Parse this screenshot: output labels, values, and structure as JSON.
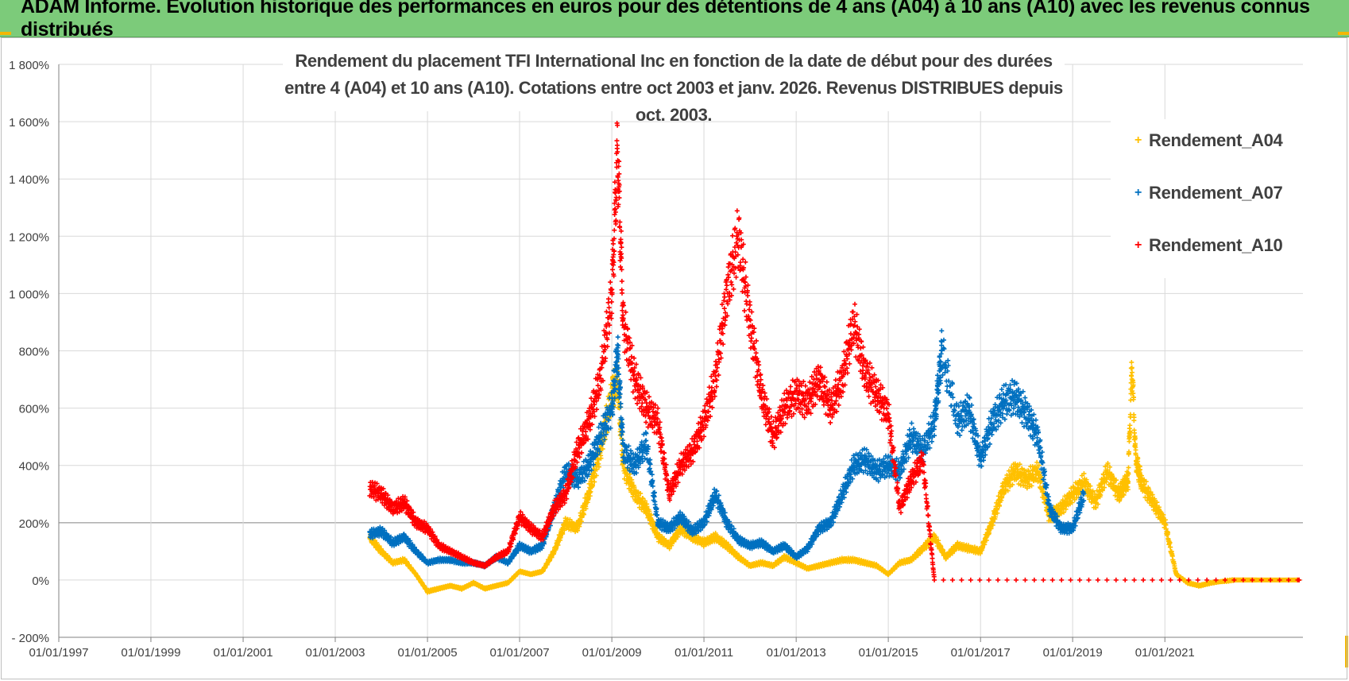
{
  "banner": {
    "title": "ADAM Informe. Evolution historique des performances en euros pour des détentions de 4 ans (A04) à 10 ans (A10) avec les revenus connus distribués"
  },
  "colors": {
    "banner": "#7ccb7a",
    "corner_accent": "#f2b705",
    "A04": "#ffc000",
    "A07": "#0070c0",
    "A10": "#ff0000",
    "gridline": "#d9d9d9",
    "zero_200_line": "#a6a6a6"
  },
  "chart_data": {
    "type": "scatter",
    "marker": "plus",
    "title_lines": [
      "Rendement du placement TFI International Inc en fonction de la date de début pour des durées",
      "entre 4 (A04) et 10 ans (A10). Cotations entre oct 2003 et janv. 2026. Revenus DISTRIBUES depuis oct. 2003."
    ],
    "xlim": [
      "1997-01-01",
      "2023-12-31"
    ],
    "x_ticks": [
      "01/01/1997",
      "01/01/1999",
      "01/01/2001",
      "01/01/2003",
      "01/01/2005",
      "01/01/2007",
      "01/01/2009",
      "01/01/2011",
      "01/01/2013",
      "01/01/2015",
      "01/01/2017",
      "01/01/2019",
      "01/01/2021"
    ],
    "ylim": [
      -200,
      1800
    ],
    "y_ticks": [
      "1 800%",
      "1 600%",
      "1 400%",
      "1 200%",
      "1 000%",
      "800%",
      "600%",
      "400%",
      "200%",
      "0%",
      "- 200%"
    ],
    "y_tick_values": [
      1800,
      1600,
      1400,
      1200,
      1000,
      800,
      600,
      400,
      200,
      0,
      -200
    ],
    "grid": true,
    "legend_position": "top-right",
    "series": [
      {
        "name": "Rendement_A04",
        "color": "#ffc000",
        "points": [
          [
            "2003-10-01",
            150
          ],
          [
            "2004-01-01",
            100
          ],
          [
            "2004-04-01",
            60
          ],
          [
            "2004-07-01",
            70
          ],
          [
            "2004-10-01",
            20
          ],
          [
            "2005-01-01",
            -40
          ],
          [
            "2005-04-01",
            -30
          ],
          [
            "2005-07-01",
            -20
          ],
          [
            "2005-10-01",
            -30
          ],
          [
            "2006-01-01",
            -10
          ],
          [
            "2006-04-01",
            -30
          ],
          [
            "2006-07-01",
            -20
          ],
          [
            "2006-10-01",
            -10
          ],
          [
            "2007-01-01",
            30
          ],
          [
            "2007-04-01",
            20
          ],
          [
            "2007-07-01",
            30
          ],
          [
            "2007-10-01",
            100
          ],
          [
            "2008-01-01",
            200
          ],
          [
            "2008-04-01",
            180
          ],
          [
            "2008-07-01",
            300
          ],
          [
            "2008-10-01",
            450
          ],
          [
            "2009-01-01",
            650
          ],
          [
            "2009-02-15",
            700
          ],
          [
            "2009-04-01",
            400
          ],
          [
            "2009-07-01",
            300
          ],
          [
            "2009-10-01",
            250
          ],
          [
            "2010-01-01",
            150
          ],
          [
            "2010-04-01",
            120
          ],
          [
            "2010-07-01",
            180
          ],
          [
            "2010-10-01",
            150
          ],
          [
            "2011-01-01",
            130
          ],
          [
            "2011-04-01",
            150
          ],
          [
            "2011-07-01",
            120
          ],
          [
            "2011-10-01",
            80
          ],
          [
            "2012-01-01",
            50
          ],
          [
            "2012-04-01",
            60
          ],
          [
            "2012-07-01",
            50
          ],
          [
            "2012-10-01",
            80
          ],
          [
            "2013-01-01",
            60
          ],
          [
            "2013-04-01",
            40
          ],
          [
            "2013-07-01",
            50
          ],
          [
            "2013-10-01",
            60
          ],
          [
            "2014-01-01",
            70
          ],
          [
            "2014-04-01",
            70
          ],
          [
            "2014-07-01",
            60
          ],
          [
            "2014-10-01",
            50
          ],
          [
            "2015-01-01",
            20
          ],
          [
            "2015-04-01",
            60
          ],
          [
            "2015-07-01",
            70
          ],
          [
            "2015-10-01",
            110
          ],
          [
            "2016-01-01",
            150
          ],
          [
            "2016-04-01",
            80
          ],
          [
            "2016-07-01",
            120
          ],
          [
            "2016-10-01",
            110
          ],
          [
            "2017-01-01",
            100
          ],
          [
            "2017-04-01",
            200
          ],
          [
            "2017-07-01",
            320
          ],
          [
            "2017-10-01",
            380
          ],
          [
            "2018-01-01",
            350
          ],
          [
            "2018-04-01",
            380
          ],
          [
            "2018-07-01",
            220
          ],
          [
            "2018-10-01",
            250
          ],
          [
            "2019-01-01",
            300
          ],
          [
            "2019-04-01",
            340
          ],
          [
            "2019-07-01",
            270
          ],
          [
            "2019-10-01",
            380
          ],
          [
            "2020-01-01",
            300
          ],
          [
            "2020-03-15",
            350
          ],
          [
            "2020-04-15",
            750
          ],
          [
            "2020-05-15",
            420
          ],
          [
            "2020-07-01",
            340
          ],
          [
            "2020-10-01",
            270
          ],
          [
            "2021-01-01",
            200
          ],
          [
            "2021-04-01",
            20
          ],
          [
            "2021-07-01",
            -10
          ],
          [
            "2021-10-01",
            -20
          ],
          [
            "2022-01-01",
            -10
          ],
          [
            "2022-07-01",
            0
          ],
          [
            "2023-01-01",
            0
          ],
          [
            "2023-12-01",
            0
          ]
        ]
      },
      {
        "name": "Rendement_A07",
        "color": "#0070c0",
        "points": [
          [
            "2003-10-01",
            160
          ],
          [
            "2004-01-01",
            170
          ],
          [
            "2004-04-01",
            130
          ],
          [
            "2004-07-01",
            150
          ],
          [
            "2004-10-01",
            100
          ],
          [
            "2005-01-01",
            60
          ],
          [
            "2005-04-01",
            70
          ],
          [
            "2005-07-01",
            70
          ],
          [
            "2005-10-01",
            60
          ],
          [
            "2006-01-01",
            60
          ],
          [
            "2006-04-01",
            50
          ],
          [
            "2006-07-01",
            80
          ],
          [
            "2006-10-01",
            60
          ],
          [
            "2007-01-01",
            120
          ],
          [
            "2007-04-01",
            100
          ],
          [
            "2007-07-01",
            120
          ],
          [
            "2007-10-01",
            250
          ],
          [
            "2008-01-01",
            380
          ],
          [
            "2008-04-01",
            350
          ],
          [
            "2008-07-01",
            400
          ],
          [
            "2008-10-01",
            500
          ],
          [
            "2009-01-01",
            600
          ],
          [
            "2009-02-15",
            800
          ],
          [
            "2009-04-01",
            450
          ],
          [
            "2009-07-01",
            400
          ],
          [
            "2009-10-01",
            480
          ],
          [
            "2010-01-01",
            200
          ],
          [
            "2010-04-01",
            180
          ],
          [
            "2010-07-01",
            220
          ],
          [
            "2010-10-01",
            170
          ],
          [
            "2011-01-01",
            200
          ],
          [
            "2011-04-01",
            300
          ],
          [
            "2011-07-01",
            200
          ],
          [
            "2011-10-01",
            140
          ],
          [
            "2012-01-01",
            120
          ],
          [
            "2012-04-01",
            130
          ],
          [
            "2012-07-01",
            100
          ],
          [
            "2012-10-01",
            120
          ],
          [
            "2013-01-01",
            80
          ],
          [
            "2013-04-01",
            110
          ],
          [
            "2013-07-01",
            180
          ],
          [
            "2013-10-01",
            200
          ],
          [
            "2014-01-01",
            300
          ],
          [
            "2014-04-01",
            400
          ],
          [
            "2014-07-01",
            420
          ],
          [
            "2014-10-01",
            380
          ],
          [
            "2015-01-01",
            400
          ],
          [
            "2015-04-01",
            380
          ],
          [
            "2015-07-01",
            500
          ],
          [
            "2015-10-01",
            450
          ],
          [
            "2016-01-01",
            550
          ],
          [
            "2016-03-01",
            800
          ],
          [
            "2016-07-01",
            550
          ],
          [
            "2016-10-01",
            600
          ],
          [
            "2017-01-01",
            420
          ],
          [
            "2017-04-01",
            550
          ],
          [
            "2017-07-01",
            620
          ],
          [
            "2017-10-01",
            640
          ],
          [
            "2018-01-01",
            580
          ],
          [
            "2018-04-01",
            500
          ],
          [
            "2018-07-01",
            250
          ],
          [
            "2018-10-01",
            180
          ],
          [
            "2019-01-01",
            180
          ],
          [
            "2019-04-01",
            300
          ]
        ]
      },
      {
        "name": "Rendement_A10",
        "color": "#ff0000",
        "points": [
          [
            "2003-10-01",
            320
          ],
          [
            "2004-01-01",
            300
          ],
          [
            "2004-04-01",
            250
          ],
          [
            "2004-07-01",
            270
          ],
          [
            "2004-10-01",
            200
          ],
          [
            "2005-01-01",
            180
          ],
          [
            "2005-04-01",
            120
          ],
          [
            "2005-07-01",
            100
          ],
          [
            "2005-10-01",
            80
          ],
          [
            "2006-01-01",
            60
          ],
          [
            "2006-04-01",
            50
          ],
          [
            "2006-07-01",
            80
          ],
          [
            "2006-10-01",
            100
          ],
          [
            "2007-01-01",
            220
          ],
          [
            "2007-04-01",
            180
          ],
          [
            "2007-07-01",
            150
          ],
          [
            "2007-10-01",
            250
          ],
          [
            "2008-01-01",
            300
          ],
          [
            "2008-04-01",
            450
          ],
          [
            "2008-07-01",
            550
          ],
          [
            "2008-10-01",
            700
          ],
          [
            "2009-01-01",
            1000
          ],
          [
            "2009-02-15",
            1500
          ],
          [
            "2009-04-01",
            900
          ],
          [
            "2009-07-01",
            700
          ],
          [
            "2009-10-01",
            600
          ],
          [
            "2010-01-01",
            550
          ],
          [
            "2010-04-01",
            300
          ],
          [
            "2010-07-01",
            400
          ],
          [
            "2010-10-01",
            450
          ],
          [
            "2011-01-01",
            550
          ],
          [
            "2011-04-01",
            700
          ],
          [
            "2011-07-01",
            1000
          ],
          [
            "2011-10-01",
            1200
          ],
          [
            "2012-01-01",
            900
          ],
          [
            "2012-04-01",
            650
          ],
          [
            "2012-07-01",
            500
          ],
          [
            "2012-10-01",
            600
          ],
          [
            "2013-01-01",
            650
          ],
          [
            "2013-04-01",
            620
          ],
          [
            "2013-07-01",
            700
          ],
          [
            "2013-10-01",
            600
          ],
          [
            "2014-01-01",
            700
          ],
          [
            "2014-04-01",
            900
          ],
          [
            "2014-07-01",
            720
          ],
          [
            "2014-10-01",
            650
          ],
          [
            "2015-01-01",
            580
          ],
          [
            "2015-04-01",
            250
          ],
          [
            "2015-07-01",
            350
          ],
          [
            "2015-10-01",
            420
          ],
          [
            "2016-01-01",
            0
          ],
          [
            "2023-12-01",
            0
          ]
        ]
      }
    ]
  }
}
